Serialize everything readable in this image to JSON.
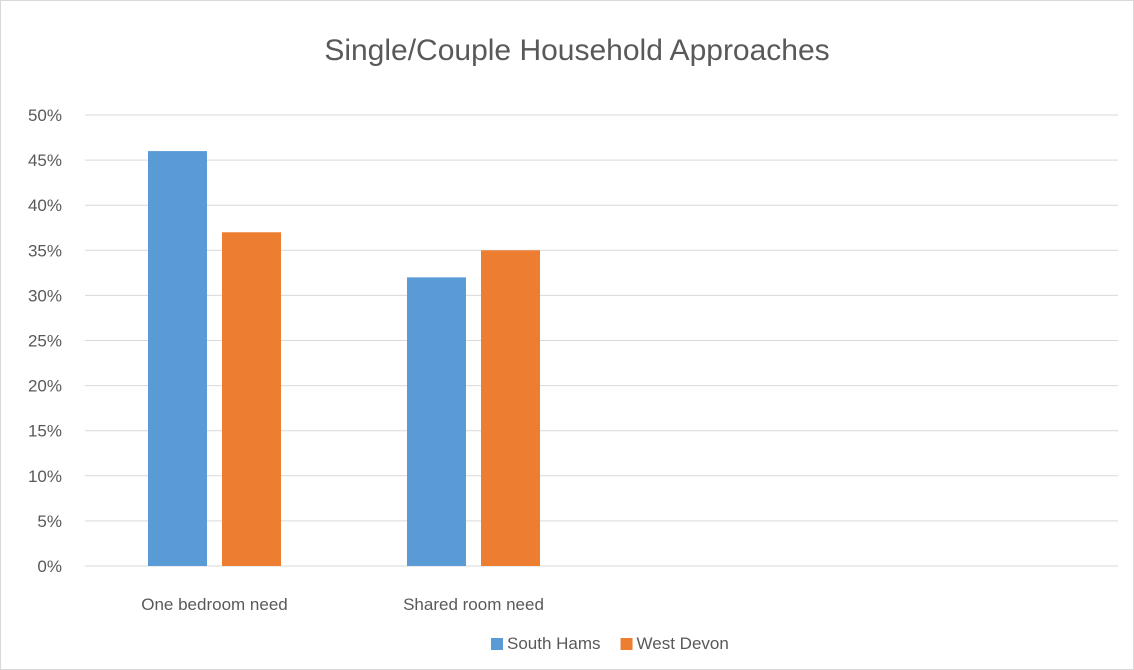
{
  "chart_data": {
    "type": "bar",
    "title": "Single/Couple Household Approaches",
    "categories": [
      "One bedroom need",
      "Shared room need"
    ],
    "series": [
      {
        "name": "South Hams",
        "values": [
          46,
          32
        ],
        "color": "#5b9bd5"
      },
      {
        "name": "West Devon",
        "values": [
          37,
          35
        ],
        "color": "#ed7d31"
      }
    ],
    "ylim": [
      0,
      50
    ],
    "yticks": [
      "0%",
      "5%",
      "10%",
      "15%",
      "20%",
      "25%",
      "30%",
      "35%",
      "40%",
      "45%",
      "50%"
    ],
    "grid": true,
    "legend_position": "bottom"
  }
}
